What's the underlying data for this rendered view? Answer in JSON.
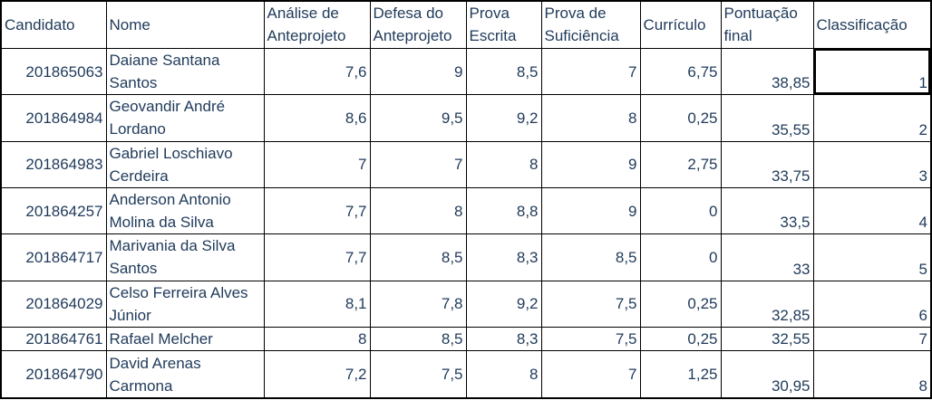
{
  "headers": {
    "candidato": "Candidato",
    "nome": "Nome",
    "analise": "Análise de Anteprojeto",
    "defesa": "Defesa do Anteprojeto",
    "prova_escrita": "Prova Escrita",
    "prova_suficiencia": "Prova de Suficiência",
    "curriculo": "Currículo",
    "pontuacao": "Pontuação final",
    "classificacao": "Classificação"
  },
  "rows": [
    {
      "candidato": "201865063",
      "nome": "Daiane Santana Santos",
      "analise": "7,6",
      "defesa": "9",
      "escrita": "8,5",
      "suficiencia": "7",
      "curriculo": "6,75",
      "pontuacao": "38,85",
      "classificacao": "1"
    },
    {
      "candidato": "201864984",
      "nome": "Geovandir André Lordano",
      "analise": "8,6",
      "defesa": "9,5",
      "escrita": "9,2",
      "suficiencia": "8",
      "curriculo": "0,25",
      "pontuacao": "35,55",
      "classificacao": "2"
    },
    {
      "candidato": "201864983",
      "nome": "Gabriel Loschiavo Cerdeira",
      "analise": "7",
      "defesa": "7",
      "escrita": "8",
      "suficiencia": "9",
      "curriculo": "2,75",
      "pontuacao": "33,75",
      "classificacao": "3"
    },
    {
      "candidato": "201864257",
      "nome": "Anderson Antonio Molina da Silva",
      "analise": "7,7",
      "defesa": "8",
      "escrita": "8,8",
      "suficiencia": "9",
      "curriculo": "0",
      "pontuacao": "33,5",
      "classificacao": "4"
    },
    {
      "candidato": "201864717",
      "nome": "Marivania da Silva Santos",
      "analise": "7,7",
      "defesa": "8,5",
      "escrita": "8,3",
      "suficiencia": "8,5",
      "curriculo": "0",
      "pontuacao": "33",
      "classificacao": "5"
    },
    {
      "candidato": "201864029",
      "nome": "Celso Ferreira Alves Júnior",
      "analise": "8,1",
      "defesa": "7,8",
      "escrita": "9,2",
      "suficiencia": "7,5",
      "curriculo": "0,25",
      "pontuacao": "32,85",
      "classificacao": "6"
    },
    {
      "candidato": "201864761",
      "nome": "Rafael Melcher",
      "analise": "8",
      "defesa": "8,5",
      "escrita": "8,3",
      "suficiencia": "7,5",
      "curriculo": "0,25",
      "pontuacao": "32,55",
      "classificacao": "7"
    },
    {
      "candidato": "201864790",
      "nome": "David Arenas Carmona",
      "analise": "7,2",
      "defesa": "7,5",
      "escrita": "8",
      "suficiencia": "7",
      "curriculo": "1,25",
      "pontuacao": "30,95",
      "classificacao": "8"
    }
  ]
}
